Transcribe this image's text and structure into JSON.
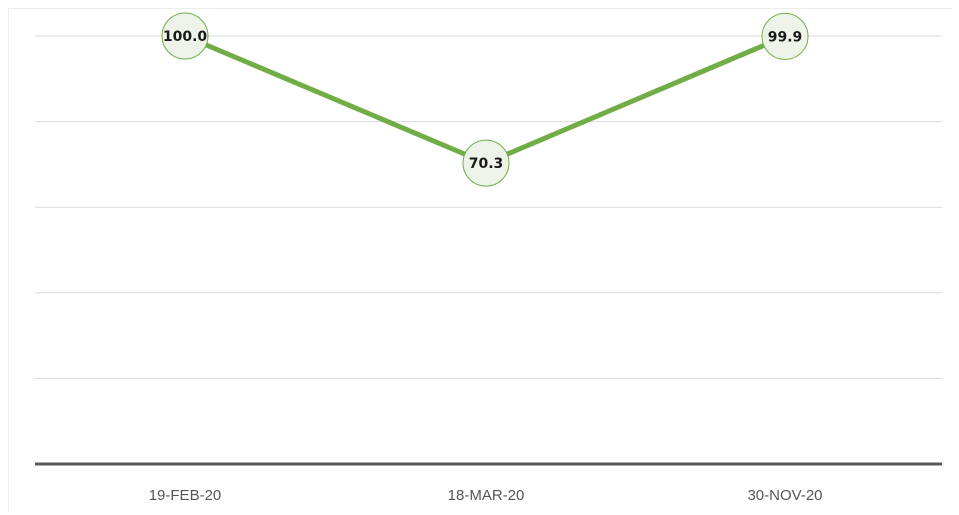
{
  "chart_data": {
    "type": "line",
    "title": "",
    "xlabel": "",
    "ylabel": "",
    "categories": [
      "19-FEB-20",
      "18-MAR-20",
      "30-NOV-20"
    ],
    "series": [
      {
        "values": [
          100.0,
          70.3,
          99.9
        ],
        "data_labels": [
          "100.0",
          "70.3",
          "99.9"
        ],
        "color": "#70ad47"
      }
    ],
    "ylim": [
      0,
      100
    ],
    "y_gridlines": [
      20,
      40,
      60,
      80,
      100
    ],
    "grid": true,
    "legend": "none",
    "colors": {
      "line": "#70ad47",
      "marker_fill": "#eef3ea",
      "marker_stroke": "#70ad47",
      "gridline": "#d9d9d9",
      "axis": "#595959"
    }
  }
}
